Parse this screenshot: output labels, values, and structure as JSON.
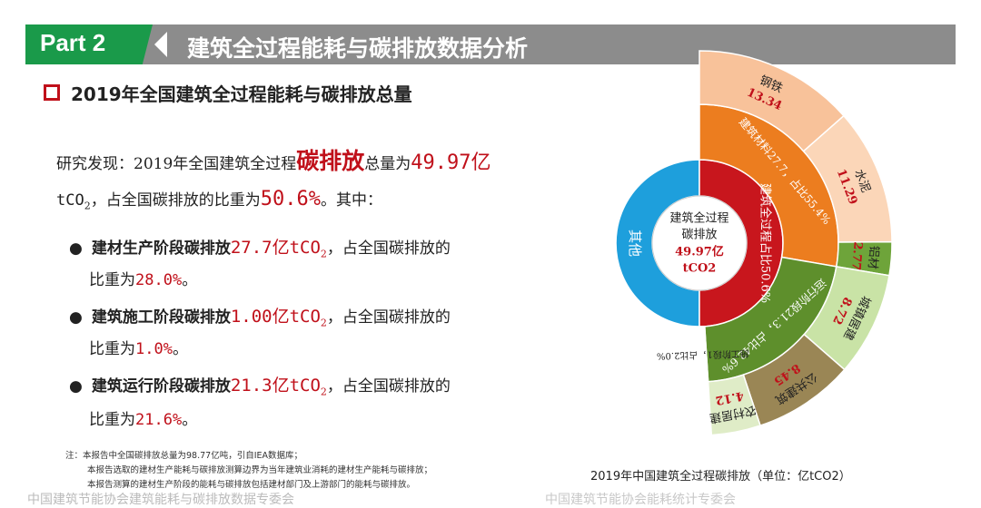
{
  "header": {
    "part_label": "Part 2",
    "title": "建筑全过程能耗与碳排放数据分析"
  },
  "subtitle": "2019年全国建筑全过程能耗与碳排放总量",
  "findings": {
    "line1_prefix": "研究发现：2019年全国建筑全过程",
    "line1_highlight": "碳排放",
    "line1_mid": "总量为",
    "line1_value": "49.97亿",
    "line2_value": "tCO",
    "line2_sub": "2",
    "line2_mid": "，占全国碳排放的比重为",
    "line2_pct": "50.6%",
    "line2_end": "。其中：",
    "items": [
      {
        "label": "建材生产阶段碳排放",
        "value": "27.7亿tCO",
        "sub": "2",
        "tail": "，占全国碳排放的",
        "ratio_prefix": "比重为",
        "ratio": "28.0%",
        "end": "。"
      },
      {
        "label": "建筑施工阶段碳排放",
        "value": "1.00亿tCO",
        "sub": "2",
        "tail": "，占全国碳排放的",
        "ratio_prefix": "比重为",
        "ratio": "1.0%",
        "end": "。"
      },
      {
        "label": "建筑运行阶段碳排放",
        "value": "21.3亿tCO",
        "sub": "2",
        "tail": "，占全国碳排放的",
        "ratio_prefix": "比重为",
        "ratio": "21.6%",
        "end": "。"
      }
    ]
  },
  "notes": [
    "注：本报告中全国碳排放总量为98.77亿吨，引自IEA数据库；",
    "本报告选取的建材生产能耗与碳排放测算边界为当年建筑业消耗的建材生产能耗与碳排放；",
    "本报告测算的建材生产阶段的能耗与碳排放包括建材部门及上游部门的能耗与碳排放。"
  ],
  "chart_caption": "2019年中国建筑全过程碳排放（单位：亿tCO2）",
  "bottom_text": "中国建筑节能协会建筑能耗与碳排放数据专委会",
  "watermark": "中国建筑节能协会能耗统计专委会",
  "chart_data": {
    "type": "pie",
    "title": "2019年中国建筑全过程碳排放",
    "unit": "亿tCO2",
    "center": {
      "line1": "建筑全过程",
      "line2": "碳排放",
      "line3": "49.97亿",
      "line4": "tCO2"
    },
    "inner": [
      {
        "name": "其他",
        "value": 48.8,
        "color": "#1e9fdc"
      },
      {
        "name": "建筑全过程占比50.6%",
        "value": 49.97,
        "color": "#c8161d"
      }
    ],
    "middle": [
      {
        "label": "建筑材料27.7，占比55.4%",
        "value": 27.7,
        "color": "#ec7d1f"
      },
      {
        "label": "运行阶段21.3，占比42.6%",
        "value": 21.3,
        "color": "#5e8f2c"
      },
      {
        "label": "施工阶段1，占比2.0%",
        "value": 1.0,
        "color": "#ffffff"
      }
    ],
    "outer": [
      {
        "name": "钢铁",
        "value": 13.34,
        "color": "#f8c29a"
      },
      {
        "name": "水泥",
        "value": 11.29,
        "color": "#fbd6b8"
      },
      {
        "name": "铝材",
        "value": 2.77,
        "color": "#6ea43a"
      },
      {
        "name": "城镇居建",
        "value": 8.72,
        "color": "#c9e3a6"
      },
      {
        "name": "公共建筑",
        "value": 8.45,
        "color": "#9a8655"
      },
      {
        "name": "农村居建",
        "value": 4.12,
        "color": "#dfecc7"
      }
    ]
  }
}
